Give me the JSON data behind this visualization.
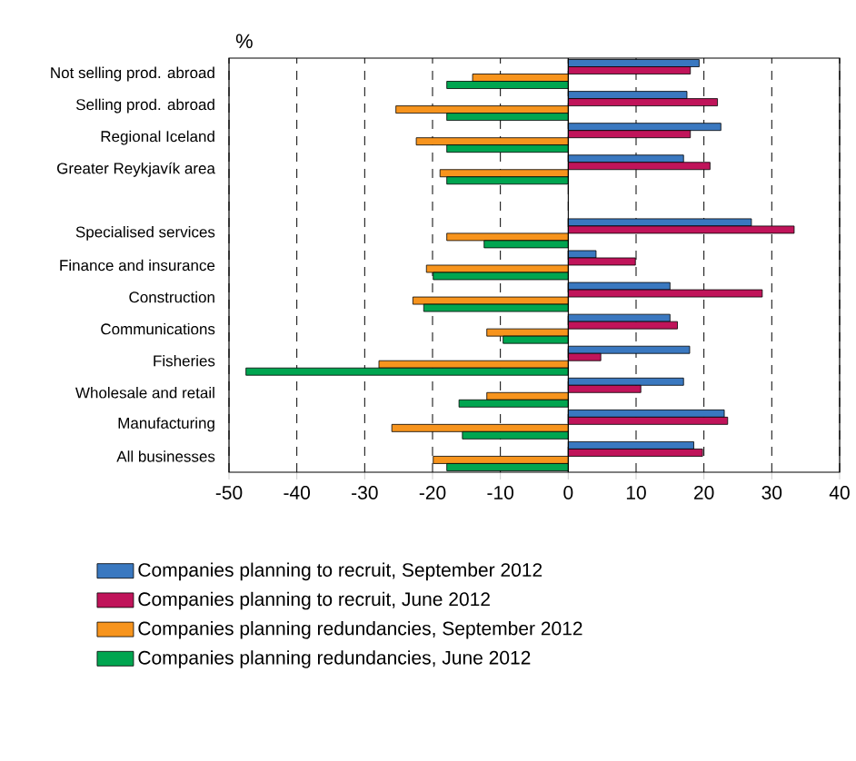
{
  "chart_data": {
    "type": "bar",
    "orientation": "horizontal",
    "xlabel": "%",
    "categories": [
      "Not selling prod. abroad",
      "Selling prod. abroad",
      "Regional Iceland",
      "Greater Reykjavík area",
      null,
      "Specialised services",
      "Finance and insurance",
      "Construction",
      "Communications",
      "Fisheries",
      "Wholesale and retail",
      "Manufacturing",
      "All businesses"
    ],
    "series": [
      {
        "name": "Companies planning to recruit, September 2012",
        "color": "#3a78c0",
        "values": [
          19.3,
          17.5,
          22.5,
          17,
          null,
          27,
          4.1,
          15,
          15,
          17.9,
          17,
          23,
          18.5
        ]
      },
      {
        "name": "Companies planning to recruit, June 2012",
        "color": "#c0145a",
        "values": [
          18,
          22,
          18,
          20.9,
          null,
          33.3,
          9.9,
          28.6,
          16.1,
          4.8,
          10.7,
          23.5,
          19.8
        ]
      },
      {
        "name": "Companies planning redundancies, September 2012",
        "color": "#f7941d",
        "values": [
          -14.1,
          -25.4,
          -22.4,
          -18.9,
          null,
          -17.9,
          -20.9,
          -22.9,
          -12,
          -27.9,
          -12,
          -26,
          -19.9
        ]
      },
      {
        "name": "Companies planning redundancies, June 2012",
        "color": "#00a550",
        "values": [
          -17.9,
          -17.9,
          -17.9,
          -17.9,
          null,
          -12.4,
          -19.9,
          -21.3,
          -9.6,
          -47.5,
          -16.1,
          -15.6,
          -17.9
        ]
      }
    ],
    "xlim": [
      -50,
      40
    ],
    "xticks": [
      -50,
      -40,
      -30,
      -20,
      -10,
      0,
      10,
      20,
      30,
      40
    ],
    "grid": "x",
    "legend": "bottom",
    "ref_lines": [
      {
        "axis": "x",
        "value": 0
      }
    ]
  }
}
